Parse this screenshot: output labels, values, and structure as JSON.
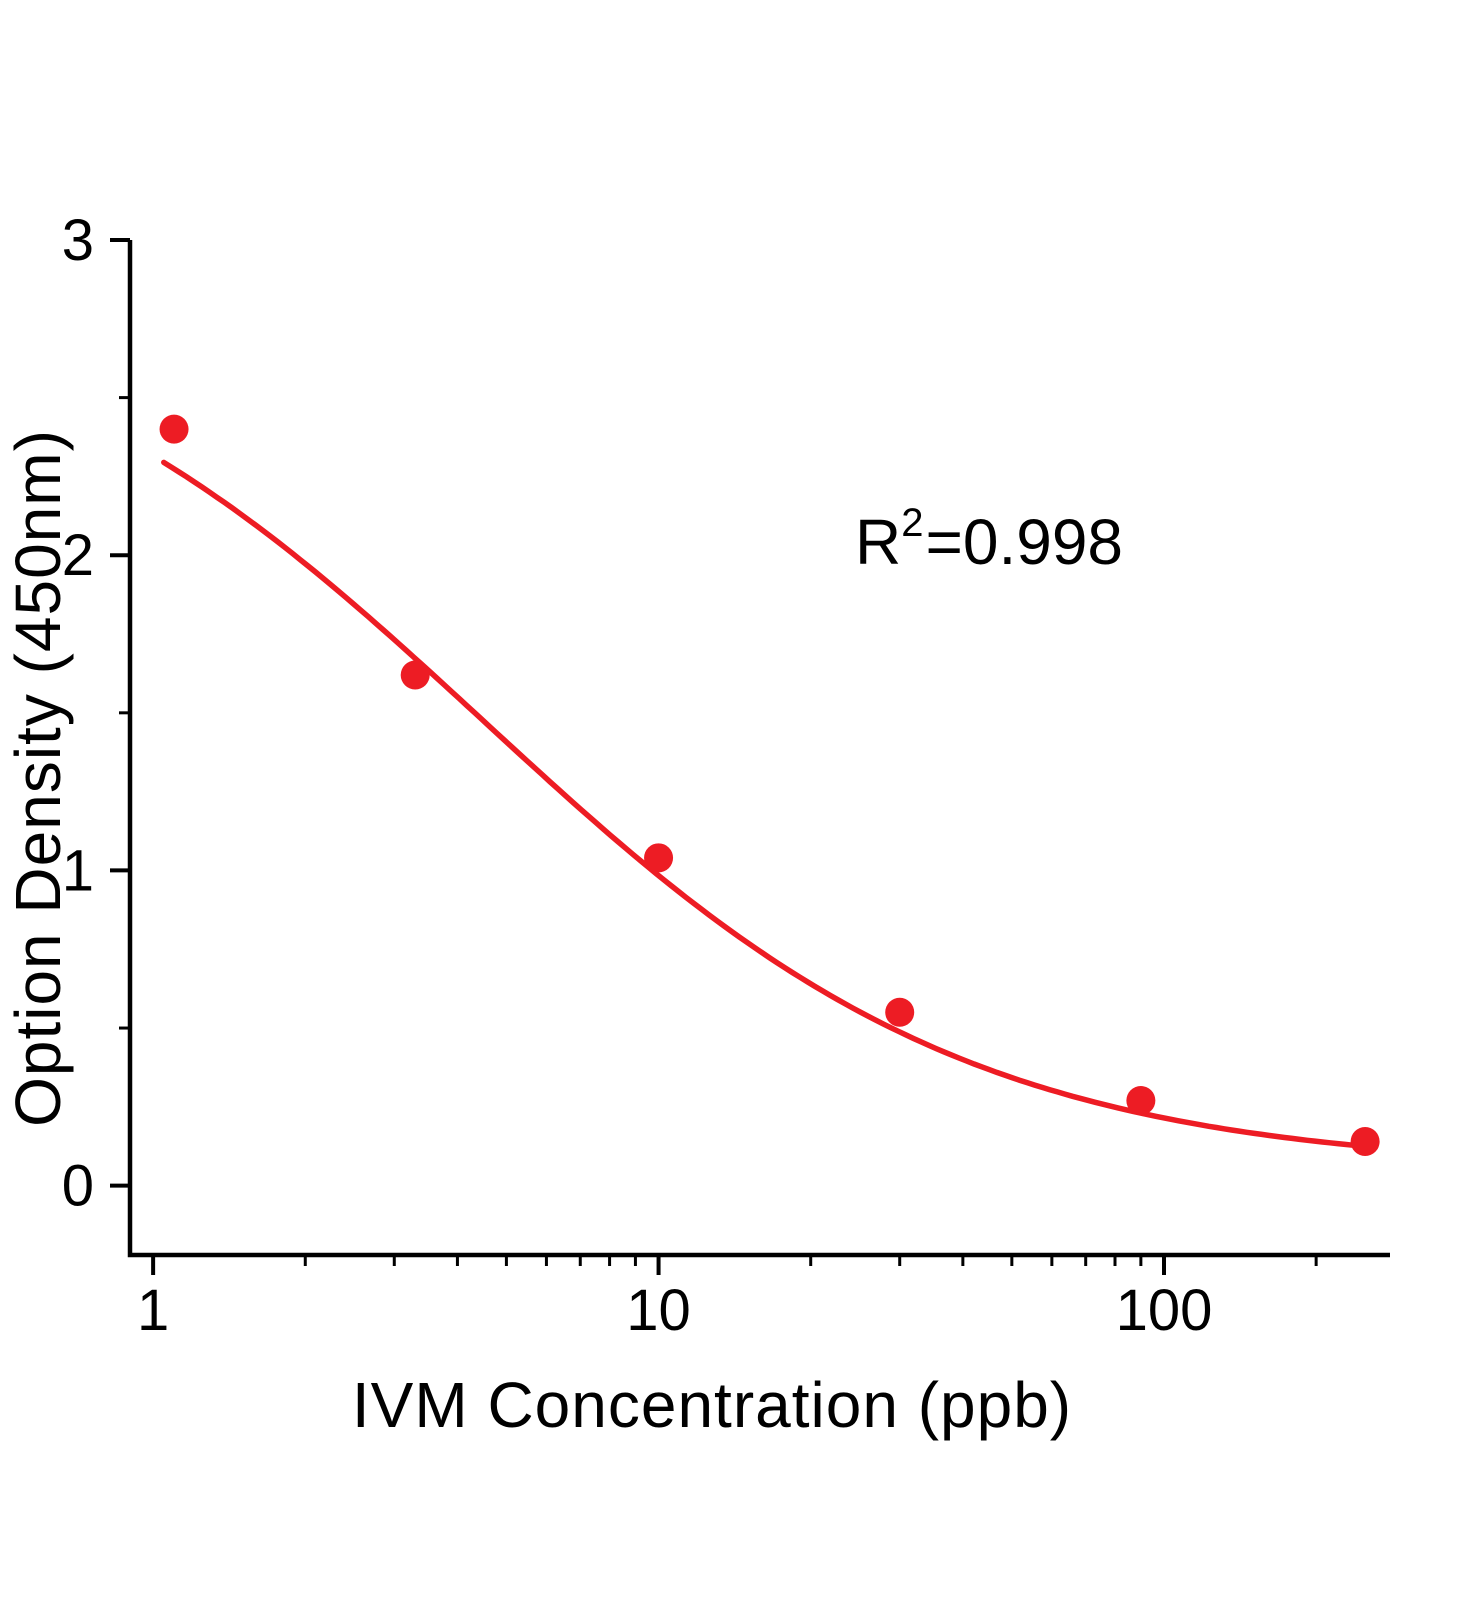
{
  "chart_data": {
    "type": "scatter",
    "title": "",
    "xlabel": "IVM Concentration (ppb)",
    "ylabel": "Option Density (450nm)",
    "x_scale": "log",
    "y_scale": "linear",
    "xlim": [
      0.9,
      280
    ],
    "ylim": [
      -0.22,
      3.0
    ],
    "grid": false,
    "x_major_ticks": [
      1,
      10,
      100
    ],
    "x_minor_ticks": [
      2,
      3,
      4,
      5,
      6,
      7,
      8,
      9,
      20,
      30,
      40,
      50,
      60,
      70,
      80,
      90,
      200
    ],
    "y_major_ticks": [
      0,
      1,
      2,
      3
    ],
    "y_minor_ticks": [
      0.5,
      1.5,
      2.5
    ],
    "points": {
      "x": [
        1.1,
        3.3,
        10,
        30,
        90,
        250
      ],
      "y": [
        2.4,
        1.62,
        1.04,
        0.55,
        0.27,
        0.14
      ]
    },
    "fit_curve": {
      "model": "4PL",
      "top": 2.9,
      "bottom": 0.05,
      "ic50": 4.5,
      "hill": 0.9,
      "x_start": 1.05,
      "x_end": 262
    },
    "annotation": {
      "base": "R",
      "sup": "2",
      "rest": "=0.998"
    },
    "colors": {
      "series": "#ed1c24",
      "axis": "#000000",
      "text": "#000000",
      "background": "#ffffff"
    }
  }
}
